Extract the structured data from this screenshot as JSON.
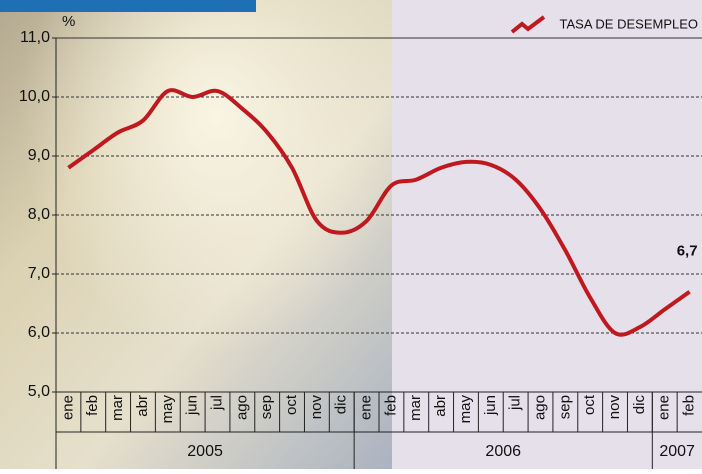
{
  "chart_data": {
    "type": "line",
    "unit": "%",
    "legend": "TASA DE DESEMPLEO",
    "categories": [
      "ene",
      "feb",
      "mar",
      "abr",
      "may",
      "jun",
      "jul",
      "ago",
      "sep",
      "oct",
      "nov",
      "dic",
      "ene",
      "feb",
      "mar",
      "abr",
      "may",
      "jun",
      "jul",
      "ago",
      "sep",
      "oct",
      "nov",
      "dic",
      "ene",
      "feb"
    ],
    "years": [
      "2005",
      "2006",
      "2007"
    ],
    "values": [
      8.8,
      9.1,
      9.4,
      9.6,
      10.1,
      10.0,
      10.1,
      9.8,
      9.4,
      8.8,
      7.9,
      7.7,
      7.9,
      8.5,
      8.6,
      8.8,
      8.9,
      8.85,
      8.6,
      8.1,
      7.4,
      6.6,
      6.0,
      6.1,
      6.4,
      6.7
    ],
    "value_labels": [
      null,
      null,
      null,
      null,
      null,
      null,
      null,
      null,
      null,
      null,
      null,
      null,
      null,
      null,
      null,
      null,
      null,
      null,
      null,
      null,
      null,
      null,
      null,
      null,
      null,
      "6,7"
    ],
    "color": "#c0181f",
    "ylim": [
      5,
      11
    ],
    "yticks": [
      {
        "value": 5,
        "label": "5,0"
      },
      {
        "value": 6,
        "label": "6,0"
      },
      {
        "value": 7,
        "label": "7,0"
      },
      {
        "value": 8,
        "label": "8,0"
      },
      {
        "value": 9,
        "label": "9,0"
      },
      {
        "value": 10,
        "label": "10,0"
      },
      {
        "value": 11,
        "label": "11,0"
      }
    ],
    "grid": true
  }
}
